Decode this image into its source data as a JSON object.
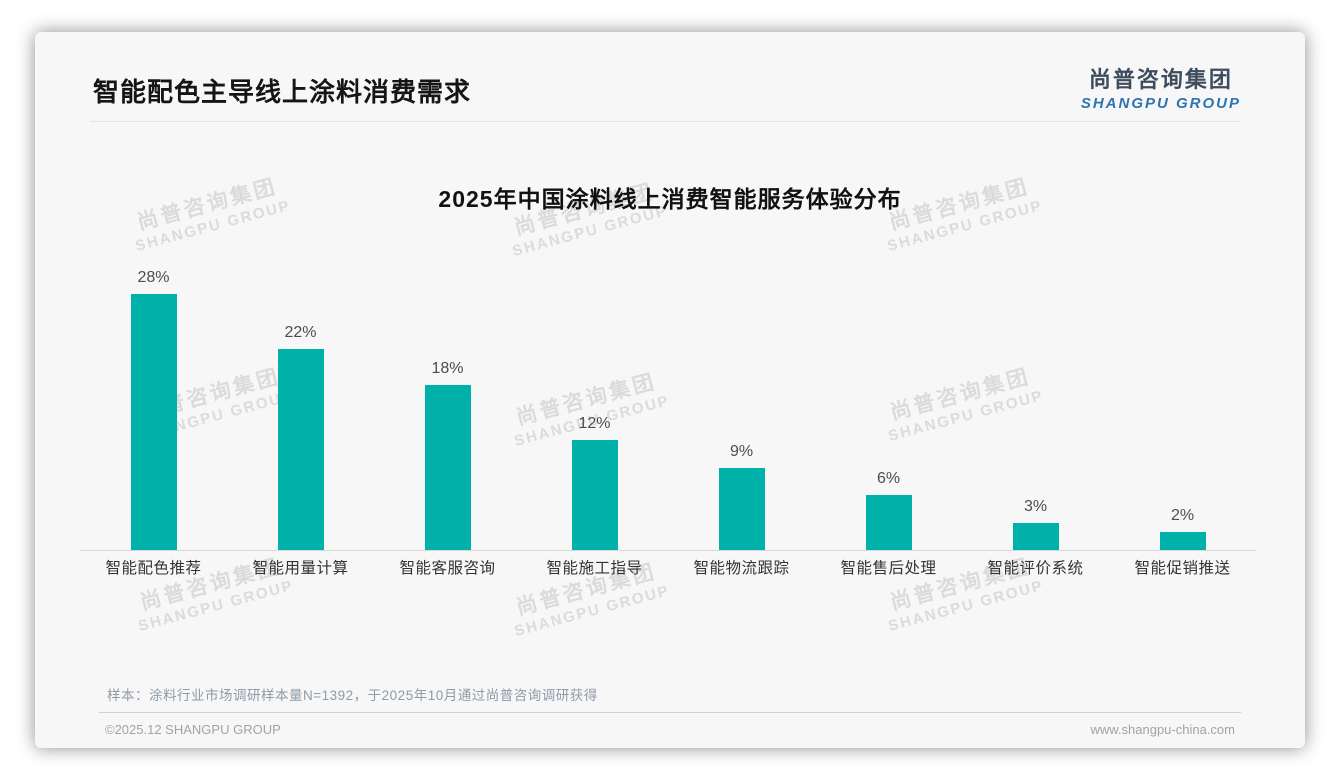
{
  "page": {
    "title": "智能配色主导线上涂料消费需求",
    "logo": {
      "cn": "尚普咨询集团",
      "en": "SHANGPU GROUP"
    },
    "watermark": {
      "cn": "尚普咨询集团",
      "en": "SHANGPU GROUP"
    },
    "note": "样本：涂料行业市场调研样本量N=1392，于2025年10月通过尚普咨询调研获得",
    "footer": {
      "left": "©2025.12 SHANGPU GROUP",
      "right": "www.shangpu-china.com"
    }
  },
  "chart_data": {
    "type": "bar",
    "title": "2025年中国涂料线上消费智能服务体验分布",
    "categories": [
      "智能配色推荐",
      "智能用量计算",
      "智能客服咨询",
      "智能施工指导",
      "智能物流跟踪",
      "智能售后处理",
      "智能评价系统",
      "智能促销推送"
    ],
    "values": [
      28,
      22,
      18,
      12,
      9,
      6,
      3,
      2
    ],
    "value_labels": [
      "28%",
      "22%",
      "18%",
      "12%",
      "9%",
      "6%",
      "3%",
      "2%"
    ],
    "unit": "%",
    "bar_color": "#00b1a9",
    "xlabel": "",
    "ylabel": "",
    "ylim": [
      0,
      30
    ],
    "grid": false,
    "legend": false
  }
}
